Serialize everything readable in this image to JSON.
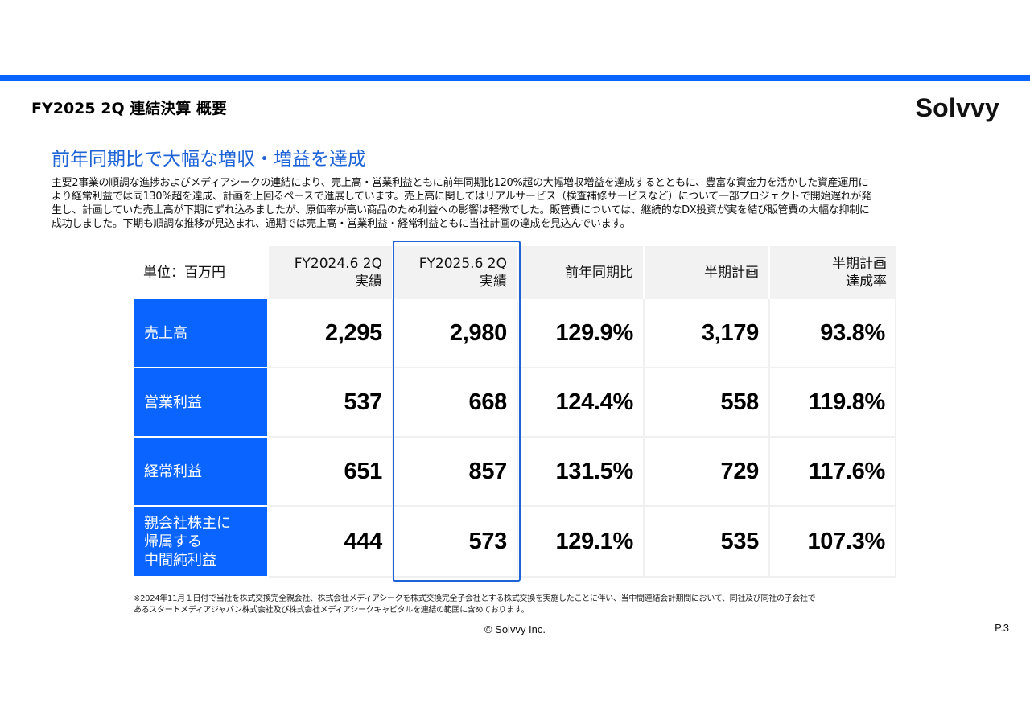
{
  "colors": {
    "accent": "#0a64ff",
    "headline": "#1d63d6"
  },
  "slide": {
    "title": "FY2025 2Q 連結決算 概要",
    "logo": "Solvvy",
    "headline": "前年同期比で大幅な増収・増益を達成",
    "body_lines": [
      "主要2事業の順調な進捗およびメディアシークの連結により、売上高・営業利益ともに前年同期比120%超の大幅増収増益を達成するとともに、豊富な資金力を活かした資産運用に",
      "より経常利益では同130%超を達成、計画を上回るペースで進展しています。売上高に関してはリアルサービス（検査補修サービスなど）について一部プロジェクトで開始遅れが発",
      "生し、計画していた売上高が下期にずれ込みましたが、原価率が高い商品のため利益への影響は軽微でした。販管費については、継続的なDX投資が実を結び販管費の大幅な抑制に",
      "成功しました。下期も順調な推移が見込まれ、通期では売上高・営業利益・経常利益ともに当社計画の達成を見込んでいます。"
    ],
    "footnote_lines": [
      "※2024年11月１日付で当社を株式交換完全親会社、株式会社メディアシークを株式交換完全子会社とする株式交換を実施したことに伴い、当中間連結会計期間において、同社及び同社の子会社で",
      "あるスタートメディアジャパン株式会社及び株式会社メディアシークキャピタルを連結の範囲に含めております。"
    ],
    "copyright": "© Solvvy Inc.",
    "page": "P.3"
  },
  "table": {
    "unit_label": "単位：百万円",
    "headers": [
      "FY2024.6 2Q\n実績",
      "FY2025.6 2Q\n実績",
      "前年同期比",
      "半期計画",
      "半期計画\n達成率"
    ],
    "rows": [
      {
        "label": "売上高",
        "values": [
          "2,295",
          "2,980",
          "129.9%",
          "3,179",
          "93.8%"
        ]
      },
      {
        "label": "営業利益",
        "values": [
          "537",
          "668",
          "124.4%",
          "558",
          "119.8%"
        ]
      },
      {
        "label": "経常利益",
        "values": [
          "651",
          "857",
          "131.5%",
          "729",
          "117.6%"
        ]
      },
      {
        "label": "親会社株主に\n帰属する\n中間純利益",
        "values": [
          "444",
          "573",
          "129.1%",
          "535",
          "107.3%"
        ]
      }
    ]
  }
}
